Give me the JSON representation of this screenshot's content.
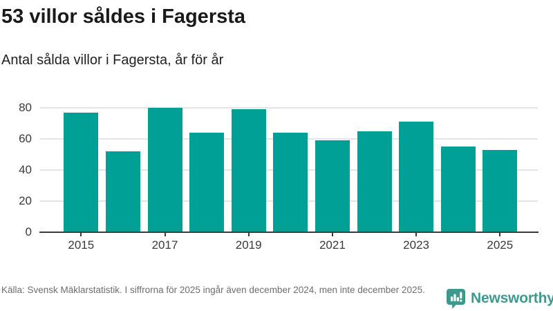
{
  "header": {
    "title": "53 villor såldes i Fagersta",
    "subtitle": "Antal sålda villor i Fagersta, år för år"
  },
  "chart_data": {
    "type": "bar",
    "categories": [
      2015,
      2016,
      2017,
      2018,
      2019,
      2020,
      2021,
      2022,
      2023,
      2024,
      2025
    ],
    "values": [
      77,
      52,
      80,
      64,
      79,
      64,
      59,
      65,
      71,
      55,
      53
    ],
    "title": "53 villor såldes i Fagersta",
    "subtitle": "Antal sålda villor i Fagersta, år för år",
    "xlabel": "",
    "ylabel": "",
    "ylim": [
      0,
      84
    ],
    "yticks": [
      0,
      20,
      40,
      60,
      80
    ],
    "xtick_labels": [
      "2015",
      "2017",
      "2019",
      "2021",
      "2023",
      "2025"
    ],
    "grid": true,
    "legend": "none",
    "bar_color": "#00a096"
  },
  "footer": {
    "source": "Källa: Svensk Mäklarstatistik. I siffrorna för 2025 ingår även december 2024, men inte december 2025."
  },
  "branding": {
    "wordmark": "Newsworthy",
    "icon": "newsworthy-speech-bubble-bars-icon",
    "accent_color": "#3d998e"
  },
  "colors": {
    "bar": "#00a096",
    "gridline": "#e4e4e4",
    "axis": "#3a3a3a",
    "title_text": "#1a1a1a",
    "footer_text": "#6e6e6e",
    "background": "#ffffff"
  }
}
